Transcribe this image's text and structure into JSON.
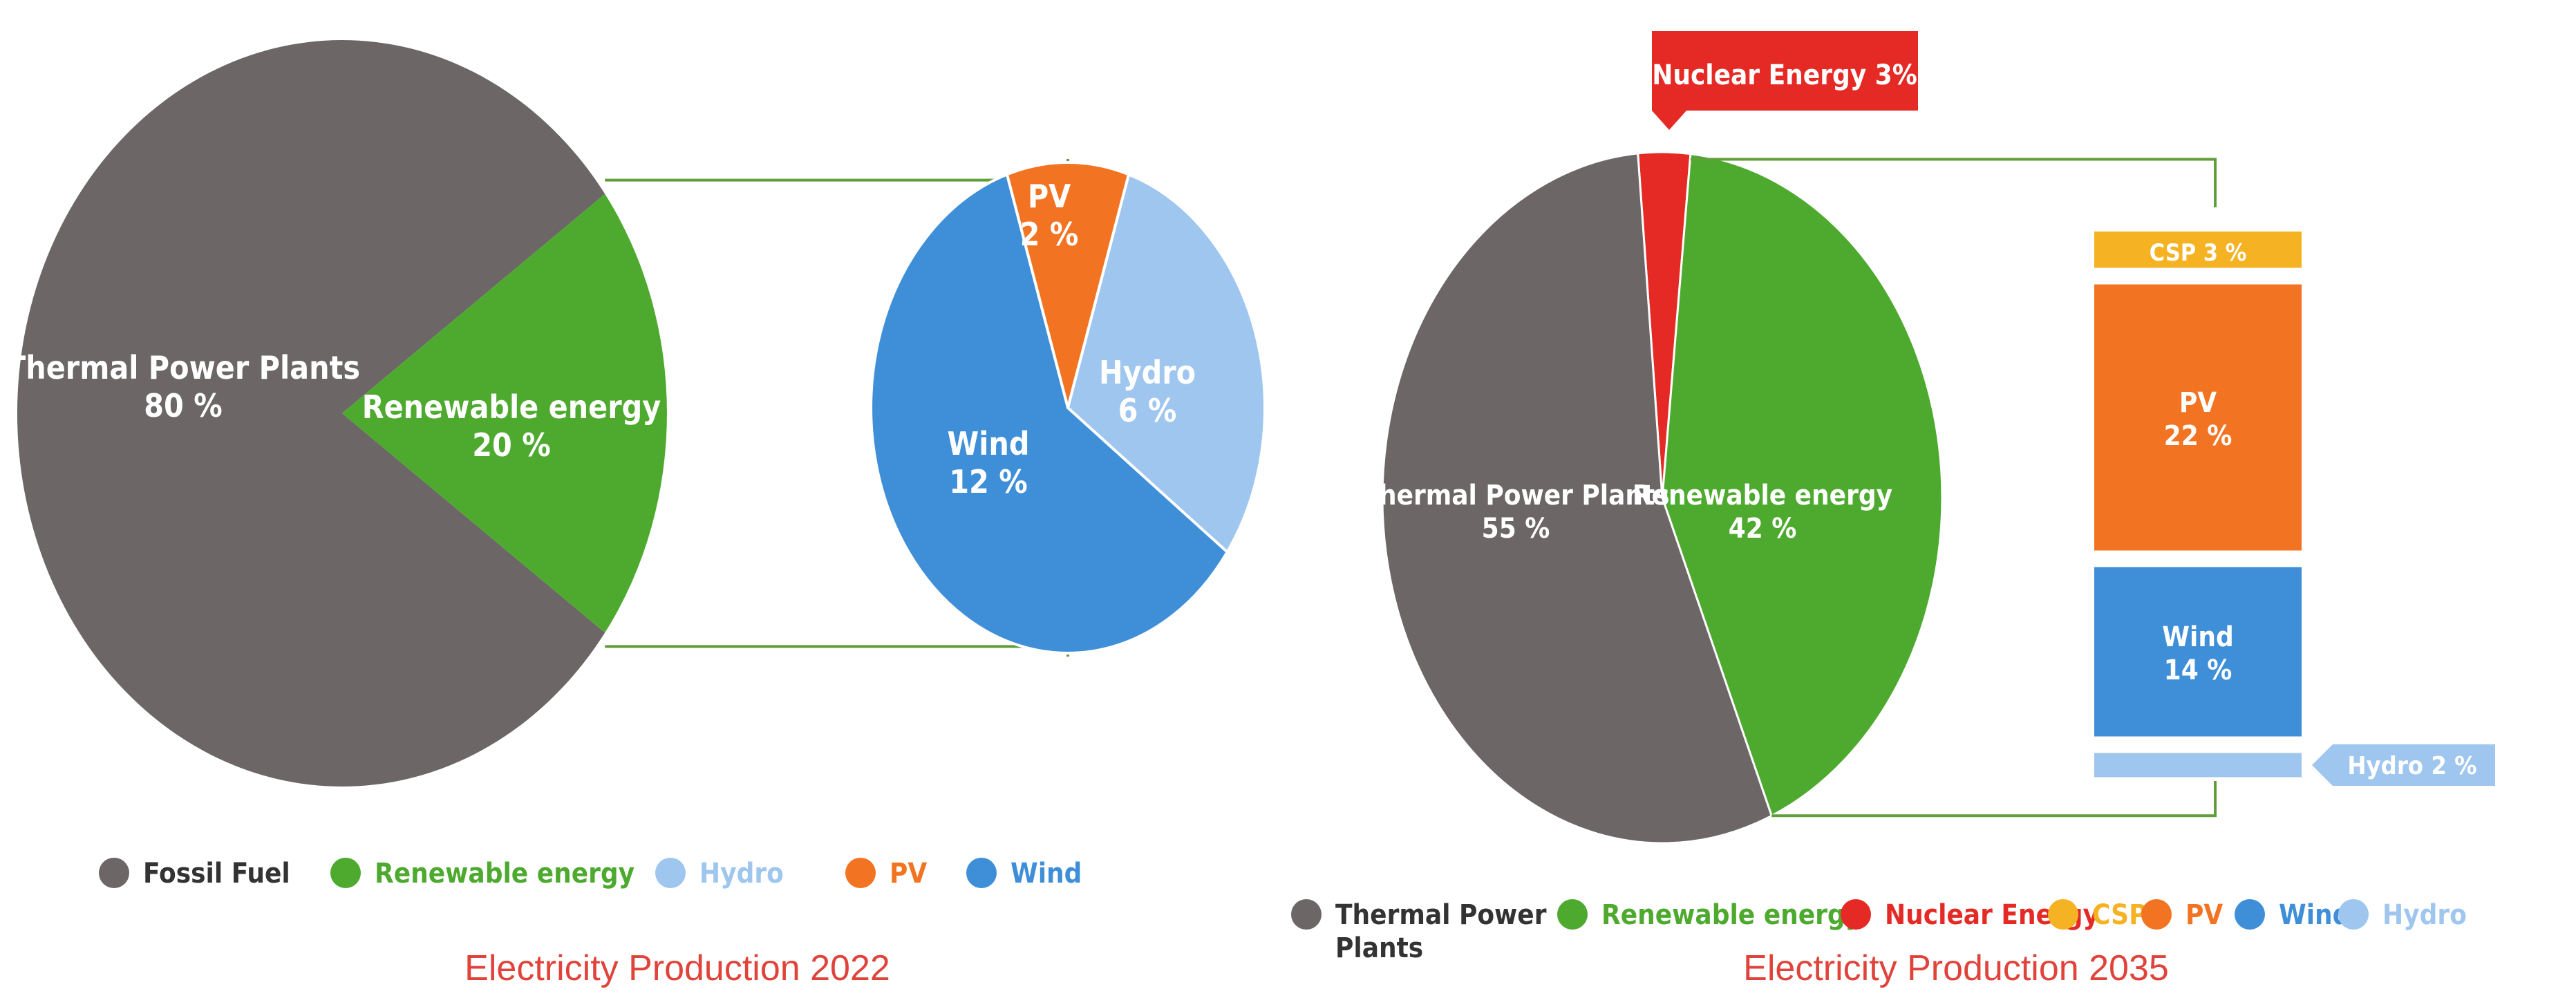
{
  "colors": {
    "thermal": "#6c6666",
    "renewable": "#4eaa2f",
    "nuclear": "#e52a25",
    "csp": "#f5b222",
    "pv": "#f27422",
    "wind": "#3f8fd8",
    "hydro": "#9ec6ee",
    "connector": "#5f9e3a",
    "title_red": "#e0433a"
  },
  "chart_data": [
    {
      "type": "pie",
      "title": "Electricity Production 2022",
      "slices": [
        {
          "label": "Thermal Power Plants",
          "value": 80,
          "value_text": "80 %",
          "color_key": "thermal"
        },
        {
          "label": "Renewable energy",
          "value": 20,
          "value_text": "20 %",
          "color_key": "renewable"
        }
      ],
      "breakdown": {
        "type": "pie",
        "of": "Renewable energy",
        "slices": [
          {
            "label": "PV",
            "value": 2,
            "value_text": "2 %",
            "color_key": "pv"
          },
          {
            "label": "Hydro",
            "value": 6,
            "value_text": "6 %",
            "color_key": "hydro"
          },
          {
            "label": "Wind",
            "value": 12,
            "value_text": "12 %",
            "color_key": "wind"
          }
        ]
      },
      "legend": [
        {
          "label": "Fossil Fuel",
          "color_key": "thermal"
        },
        {
          "label": "Renewable energy",
          "color_key": "renewable"
        },
        {
          "label": "Hydro",
          "color_key": "hydro"
        },
        {
          "label": "PV",
          "color_key": "pv"
        },
        {
          "label": "Wind",
          "color_key": "wind"
        }
      ],
      "legend_placement": "bottom"
    },
    {
      "type": "pie",
      "title": "Electricity Production 2035",
      "slices": [
        {
          "label": "Thermal Power Plants",
          "value": 55,
          "value_text": "55 %",
          "color_key": "thermal"
        },
        {
          "label": "Nuclear Energy",
          "value": 3,
          "value_text": "3%",
          "color_key": "nuclear"
        },
        {
          "label": "Renewable energy",
          "value": 42,
          "value_text": "42 %",
          "color_key": "renewable"
        }
      ],
      "breakdown": {
        "type": "stacked-bar",
        "of": "Renewable energy",
        "segments": [
          {
            "label": "CSP",
            "value": 3,
            "value_text": "3 %",
            "color_key": "csp"
          },
          {
            "label": "PV",
            "value": 22,
            "value_text": "22 %",
            "color_key": "pv"
          },
          {
            "label": "Wind",
            "value": 14,
            "value_text": "14 %",
            "color_key": "wind"
          },
          {
            "label": "Hydro",
            "value": 2,
            "value_text": "2 %",
            "color_key": "hydro"
          }
        ]
      },
      "legend": [
        {
          "label": "Thermal Power Plants",
          "color_key": "thermal"
        },
        {
          "label": "Renewable energy",
          "color_key": "renewable"
        },
        {
          "label": "Nuclear Energy",
          "color_key": "nuclear"
        },
        {
          "label": "CSP",
          "color_key": "csp"
        },
        {
          "label": "PV",
          "color_key": "pv"
        },
        {
          "label": "Wind",
          "color_key": "wind"
        },
        {
          "label": "Hydro",
          "color_key": "hydro"
        }
      ],
      "legend_placement": "bottom"
    }
  ]
}
